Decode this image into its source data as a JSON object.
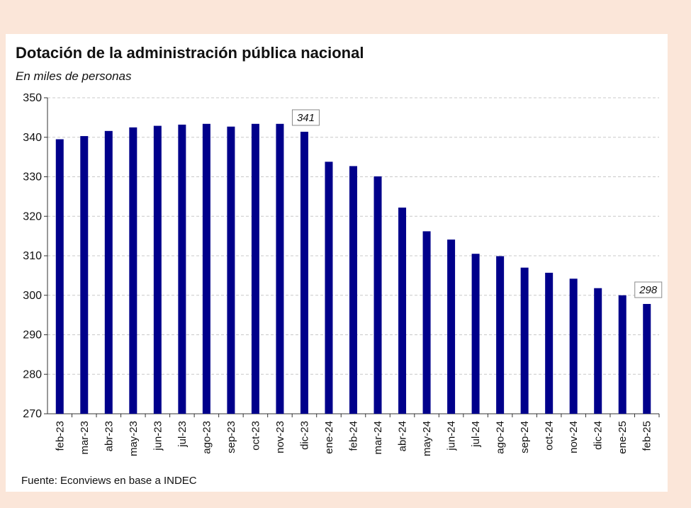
{
  "title": "Dotación de la administración pública nacional",
  "subtitle": "En miles de personas",
  "source": "Fuente: Econviews en base a INDEC",
  "colors": {
    "bar": "#00008b",
    "grid": "#c8c8c8",
    "page_bg": "#fbe6d9",
    "card_bg": "#ffffff"
  },
  "chart_data": {
    "type": "bar",
    "categories": [
      "feb-23",
      "mar-23",
      "abr-23",
      "may-23",
      "jun-23",
      "jul-23",
      "ago-23",
      "sep-23",
      "oct-23",
      "nov-23",
      "dic-23",
      "ene-24",
      "feb-24",
      "mar-24",
      "abr-24",
      "may-24",
      "jun-24",
      "jul-24",
      "ago-24",
      "sep-24",
      "oct-24",
      "nov-24",
      "dic-24",
      "ene-25",
      "feb-25"
    ],
    "values": [
      339.5,
      340.3,
      341.6,
      342.5,
      342.9,
      343.2,
      343.4,
      342.7,
      343.4,
      343.4,
      341.4,
      333.8,
      332.7,
      330.1,
      322.2,
      316.2,
      314.1,
      310.5,
      309.9,
      307.0,
      305.7,
      304.2,
      301.8,
      300.0,
      297.8
    ],
    "ylim": [
      270,
      350
    ],
    "yticks": [
      270,
      280,
      290,
      300,
      310,
      320,
      330,
      340,
      350
    ],
    "grid": true,
    "annotations": [
      {
        "category": "dic-23",
        "label": "341"
      },
      {
        "category": "feb-25",
        "label": "298"
      }
    ]
  }
}
